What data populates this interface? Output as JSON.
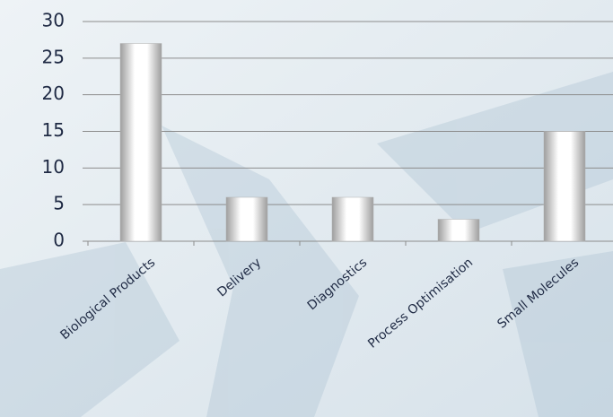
{
  "chart_data": {
    "type": "bar",
    "categories": [
      "Biological Products",
      "Delivery",
      "Diagnostics",
      "Process Optimisation",
      "Small Molecules"
    ],
    "values": [
      27,
      6,
      6,
      3,
      15
    ],
    "color": "#ffffff",
    "ylim": [
      0,
      30
    ],
    "yticks": [
      0,
      5,
      10,
      15,
      20,
      25,
      30
    ],
    "grid": true
  }
}
